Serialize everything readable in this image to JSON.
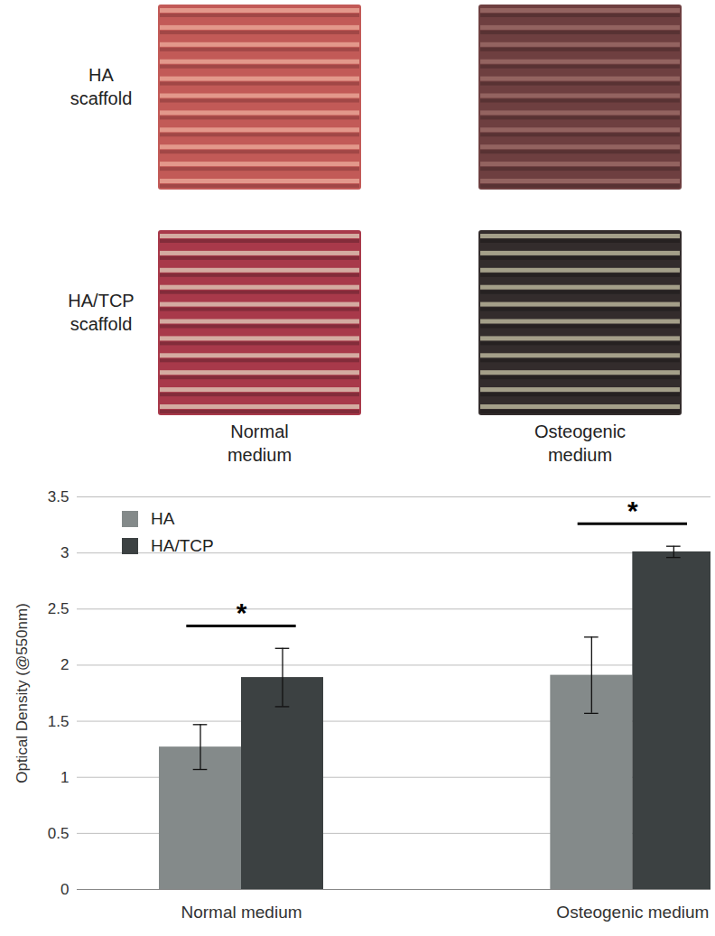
{
  "photo_panel": {
    "row_labels": [
      "HA scaffold",
      "HA/TCP scaffold"
    ],
    "column_labels": [
      "Normal medium",
      "Osteogenic medium"
    ]
  },
  "chart_data": {
    "type": "bar",
    "categories": [
      "Normal medium",
      "Osteogenic medium"
    ],
    "series": [
      {
        "name": "HA",
        "color": "#848a8a",
        "values": [
          1.27,
          1.91
        ],
        "errors": [
          0.2,
          0.34
        ]
      },
      {
        "name": "HA/TCP",
        "color": "#3c4142",
        "values": [
          1.89,
          3.01
        ],
        "errors": [
          0.26,
          0.05
        ]
      }
    ],
    "ylabel": "Optical Density (@550nm)",
    "ylim": [
      0,
      3.5
    ],
    "yticks": [
      0,
      0.5,
      1,
      1.5,
      2,
      2.5,
      3,
      3.5
    ],
    "grid": true,
    "legend": "top-left",
    "significance": [
      {
        "category": "Normal medium",
        "label": "*"
      },
      {
        "category": "Osteogenic medium",
        "label": "*"
      }
    ]
  }
}
